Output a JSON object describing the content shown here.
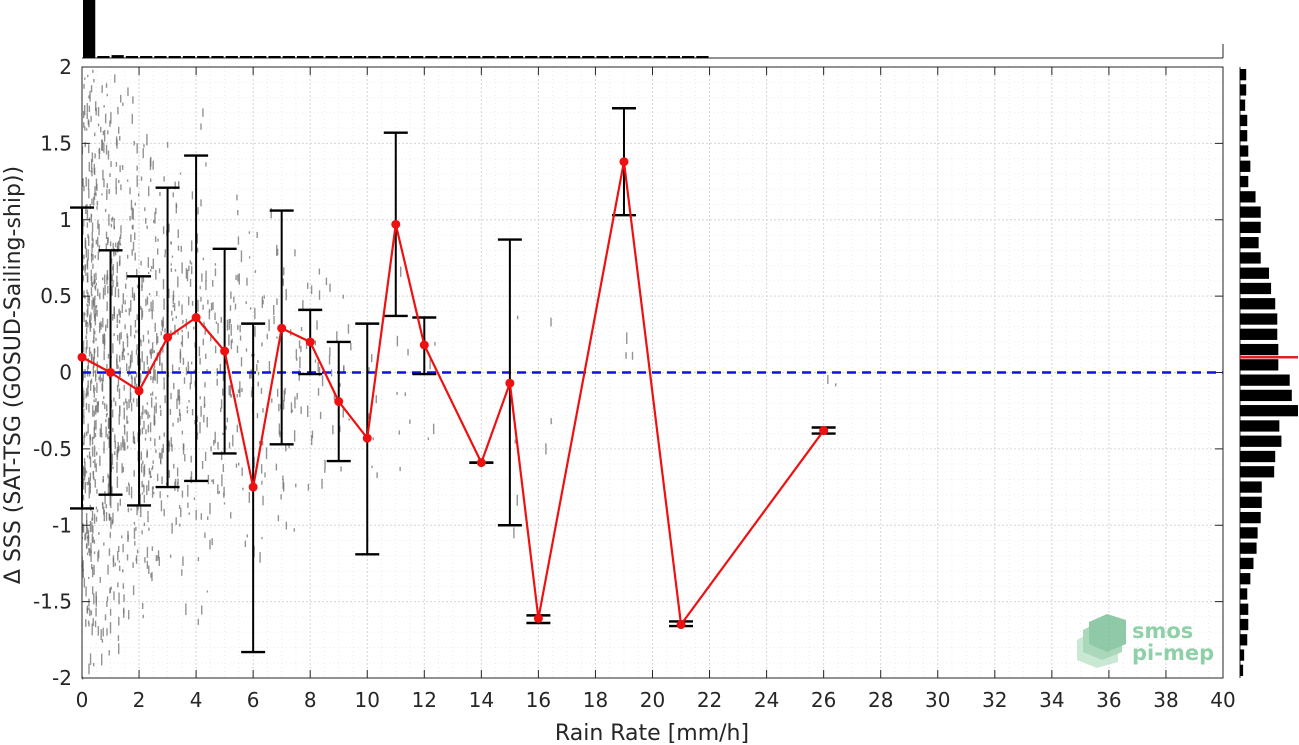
{
  "chart_data": {
    "type": "line",
    "xlabel": "Rain Rate [mm/h]",
    "ylabel": "Δ SSS (SAT-TSG (GOSUD-Sailing-ship))",
    "xlim": [
      0,
      40
    ],
    "ylim": [
      -2,
      2
    ],
    "x_ticks": [
      "0",
      "2",
      "4",
      "6",
      "8",
      "10",
      "12",
      "14",
      "16",
      "18",
      "20",
      "22",
      "24",
      "26",
      "28",
      "30",
      "32",
      "34",
      "36",
      "38",
      "40"
    ],
    "y_ticks": [
      "2",
      "1.5",
      "1",
      "0.5",
      "0",
      "-0.5",
      "-1",
      "-1.5",
      "-2"
    ],
    "grid": true,
    "reference_line": {
      "y": 0,
      "style": "dashed",
      "color": "#1010e0"
    },
    "series": [
      {
        "style": "line-with-markers",
        "color": "#ee1111",
        "points": [
          {
            "x": 0,
            "y": 0.1,
            "ylow": -0.89,
            "yhigh": 1.08
          },
          {
            "x": 1,
            "y": 0.0,
            "ylow": -0.8,
            "yhigh": 0.8
          },
          {
            "x": 2,
            "y": -0.12,
            "ylow": -0.87,
            "yhigh": 0.63
          },
          {
            "x": 3,
            "y": 0.23,
            "ylow": -0.75,
            "yhigh": 1.21
          },
          {
            "x": 4,
            "y": 0.36,
            "ylow": -0.71,
            "yhigh": 1.42
          },
          {
            "x": 5,
            "y": 0.14,
            "ylow": -0.53,
            "yhigh": 0.81
          },
          {
            "x": 6,
            "y": -0.75,
            "ylow": -1.83,
            "yhigh": 0.32
          },
          {
            "x": 7,
            "y": 0.29,
            "ylow": -0.47,
            "yhigh": 1.06
          },
          {
            "x": 8,
            "y": 0.2,
            "ylow": -0.01,
            "yhigh": 0.41
          },
          {
            "x": 9,
            "y": -0.19,
            "ylow": -0.58,
            "yhigh": 0.2
          },
          {
            "x": 10,
            "y": -0.43,
            "ylow": -1.19,
            "yhigh": 0.32
          },
          {
            "x": 11,
            "y": 0.97,
            "ylow": 0.37,
            "yhigh": 1.57
          },
          {
            "x": 12,
            "y": 0.18,
            "ylow": -0.01,
            "yhigh": 0.36
          },
          {
            "x": 14,
            "y": -0.59,
            "ylow": -0.59,
            "yhigh": -0.59
          },
          {
            "x": 15,
            "y": -0.07,
            "ylow": -1.0,
            "yhigh": 0.87
          },
          {
            "x": 16,
            "y": -1.61,
            "ylow": -1.64,
            "yhigh": -1.59
          },
          {
            "x": 19,
            "y": 1.38,
            "ylow": 1.03,
            "yhigh": 1.73
          },
          {
            "x": 21,
            "y": -1.65,
            "ylow": -1.66,
            "yhigh": -1.63
          },
          {
            "x": 26,
            "y": -0.38,
            "ylow": -0.4,
            "yhigh": -0.36
          }
        ]
      }
    ],
    "top_histogram": {
      "x_bins": [
        0,
        0.5,
        1,
        1.5,
        2,
        2.5,
        3,
        3.5,
        4,
        4.5,
        5,
        5.5,
        6,
        6.5,
        7,
        7.5,
        8,
        8.5,
        9,
        9.5,
        10,
        10.5,
        11,
        11.5,
        12,
        12.5,
        13,
        13.5,
        14,
        14.5,
        15,
        15.5,
        16,
        16.5,
        17,
        17.5,
        18,
        18.5,
        19,
        19.5,
        20,
        20.5,
        21,
        21.5
      ],
      "counts": [
        60,
        2,
        3,
        2,
        2,
        1.5,
        1.5,
        1,
        1.5,
        1,
        1,
        1,
        1,
        1,
        1,
        1,
        1,
        1,
        1,
        1,
        1,
        0.8,
        1,
        0.8,
        0.8,
        0.6,
        0.6,
        0.5,
        0.6,
        0.5,
        1,
        0.5,
        1,
        0.3,
        0.3,
        0.3,
        0.5,
        0.3,
        0.5,
        0.3,
        0.3,
        0.3,
        0.8,
        0.3
      ]
    },
    "right_histogram": {
      "y_bins": [
        1.95,
        1.85,
        1.75,
        1.65,
        1.55,
        1.45,
        1.35,
        1.25,
        1.15,
        1.05,
        0.95,
        0.85,
        0.75,
        0.65,
        0.55,
        0.45,
        0.35,
        0.25,
        0.15,
        0.05,
        -0.05,
        -0.15,
        -0.25,
        -0.35,
        -0.45,
        -0.55,
        -0.65,
        -0.75,
        -0.85,
        -0.95,
        -1.05,
        -1.15,
        -1.25,
        -1.35,
        -1.45,
        -1.55,
        -1.65,
        -1.75,
        -1.85,
        -1.95
      ],
      "counts": [
        6,
        6,
        5,
        7,
        7,
        8,
        10,
        8,
        15,
        20,
        20,
        18,
        20,
        28,
        30,
        34,
        36,
        36,
        37,
        37,
        48,
        50,
        56,
        38,
        40,
        34,
        33,
        21,
        21,
        20,
        17,
        16,
        13,
        10,
        7,
        8,
        8,
        7,
        4,
        3
      ],
      "mean_line": {
        "y": 0.1,
        "color": "#dd2222"
      }
    },
    "colors": {
      "mean_line": "#ee1111",
      "errorbar": "#000000",
      "zero_line": "#1010e0",
      "scatter": "#707070"
    }
  },
  "logo": {
    "line1": "smos",
    "line2": "pi-mep"
  }
}
